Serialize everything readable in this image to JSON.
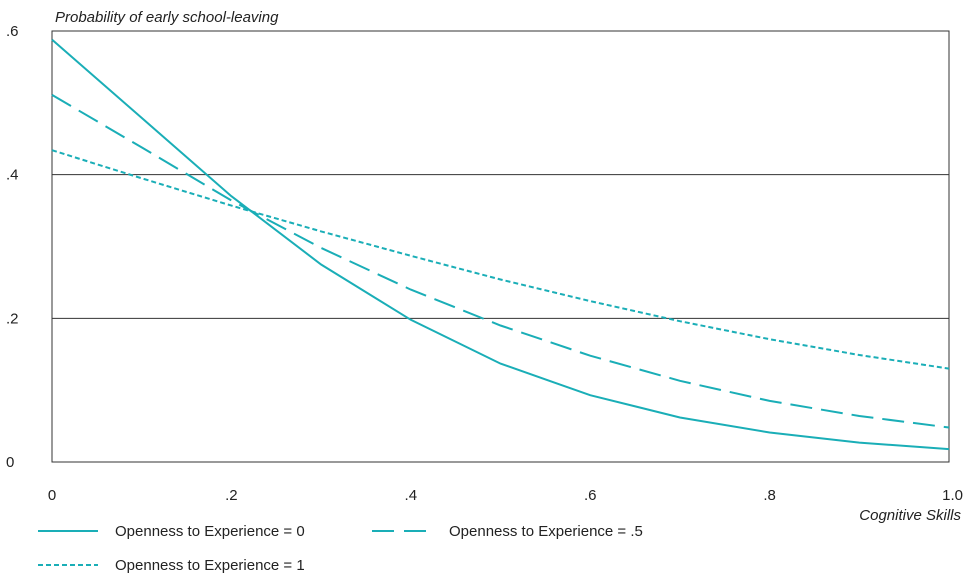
{
  "chart_data": {
    "type": "line",
    "ylabel": "Probability of early school-leaving",
    "xlabel": "Cognitive Skills",
    "xlim": [
      0,
      1.0
    ],
    "ylim": [
      0,
      0.6
    ],
    "x_ticks": [
      {
        "value": 0,
        "label": "0"
      },
      {
        "value": 0.2,
        "label": ".2"
      },
      {
        "value": 0.4,
        "label": ".4"
      },
      {
        "value": 0.6,
        "label": ".6"
      },
      {
        "value": 0.8,
        "label": ".8"
      },
      {
        "value": 1.0,
        "label": "1.0"
      }
    ],
    "y_ticks": [
      {
        "value": 0,
        "label": "0"
      },
      {
        "value": 0.2,
        "label": ".2"
      },
      {
        "value": 0.4,
        "label": ".4"
      },
      {
        "value": 0.6,
        "label": ".6"
      }
    ],
    "gridlines_y": [
      0.2,
      0.4
    ],
    "legend_position": "bottom",
    "x": [
      0,
      0.1,
      0.2,
      0.3,
      0.4,
      0.5,
      0.6,
      0.7,
      0.8,
      0.9,
      1.0
    ],
    "series": [
      {
        "name": "Openness to Experience = 0",
        "style": "solid",
        "values": [
          0.588,
          0.479,
          0.37,
          0.275,
          0.198,
          0.137,
          0.093,
          0.062,
          0.041,
          0.027,
          0.018
        ]
      },
      {
        "name": "Openness to Experience = .5",
        "style": "dashed",
        "values": [
          0.511,
          0.438,
          0.364,
          0.298,
          0.24,
          0.19,
          0.148,
          0.113,
          0.085,
          0.064,
          0.048
        ]
      },
      {
        "name": "Openness to Experience = 1",
        "style": "dotted",
        "values": [
          0.434,
          0.395,
          0.357,
          0.321,
          0.287,
          0.254,
          0.224,
          0.196,
          0.171,
          0.149,
          0.13
        ]
      }
    ],
    "colors": {
      "line": "#1aaeb7",
      "grid": "#333333",
      "axis": "#333333"
    }
  }
}
